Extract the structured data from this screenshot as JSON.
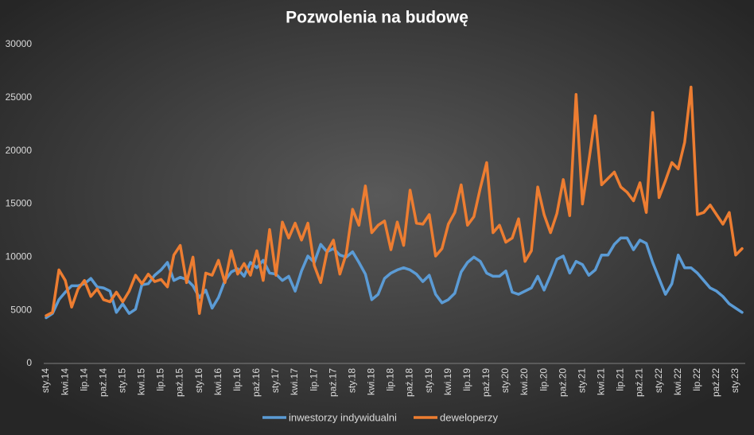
{
  "chart_data": {
    "type": "line",
    "title": "Pozwolenia na budowę",
    "categories": [
      "sty.14",
      null,
      null,
      "kwi.14",
      null,
      null,
      "lip.14",
      null,
      null,
      "paź.14",
      null,
      null,
      "sty.15",
      null,
      null,
      "kwi.15",
      null,
      null,
      "lip.15",
      null,
      null,
      "paź.15",
      null,
      null,
      "sty.16",
      null,
      null,
      "kwi.16",
      null,
      null,
      "lip.16",
      null,
      null,
      "paź.16",
      null,
      null,
      "sty.17",
      null,
      null,
      "kwi.17",
      null,
      null,
      "lip.17",
      null,
      null,
      "paź.17",
      null,
      null,
      "sty.18",
      null,
      null,
      "kwi.18",
      null,
      null,
      "lip.18",
      null,
      null,
      "paź.18",
      null,
      null,
      "sty.19",
      null,
      null,
      "kwi.19",
      null,
      null,
      "lip.19",
      null,
      null,
      "paź.19",
      null,
      null,
      "sty.20",
      null,
      null,
      "kwi.20",
      null,
      null,
      "lip.20",
      null,
      null,
      "paź.20",
      null,
      null,
      "sty.21",
      null,
      null,
      "kwi.21",
      null,
      null,
      "lip.21",
      null,
      null,
      "paź.21",
      null,
      null,
      "sty.22",
      null,
      null,
      "kwi.22",
      null,
      null,
      "lip.22",
      null,
      null,
      "paź.22",
      null,
      null,
      "sty.23",
      null
    ],
    "series": [
      {
        "name": "inwestorzy indywidualni",
        "color": "#5b9bd5",
        "values": [
          4300,
          4700,
          6000,
          6700,
          7300,
          7300,
          7500,
          8000,
          7200,
          7100,
          6800,
          4800,
          5600,
          4700,
          5100,
          7400,
          7500,
          8300,
          8800,
          9500,
          7800,
          8100,
          7900,
          7300,
          6200,
          6900,
          5200,
          6200,
          7800,
          8600,
          8900,
          8200,
          9500,
          9000,
          9700,
          8500,
          8400,
          7800,
          8200,
          6800,
          8700,
          10100,
          9500,
          11200,
          10500,
          10800,
          10200,
          10000,
          10500,
          9500,
          8400,
          6000,
          6500,
          8000,
          8500,
          8800,
          9000,
          8800,
          8400,
          7700,
          8300,
          6500,
          5700,
          6000,
          6600,
          8600,
          9500,
          10000,
          9600,
          8500,
          8200,
          8200,
          8700,
          6700,
          6500,
          6800,
          7100,
          8200,
          6900,
          8300,
          9800,
          10100,
          8500,
          9600,
          9300,
          8300,
          8800,
          10200,
          10200,
          11200,
          11800,
          11800,
          10700,
          11600,
          11300,
          9500,
          8000,
          6500,
          7500,
          10200,
          9000,
          9000,
          8500,
          7800,
          7100,
          6800,
          6300,
          5600,
          5200,
          4800
        ]
      },
      {
        "name": "deweloperzy",
        "color": "#ed7d31",
        "values": [
          4500,
          4800,
          8800,
          7800,
          5300,
          7000,
          7800,
          6300,
          7000,
          6000,
          5800,
          6700,
          5800,
          6800,
          8300,
          7500,
          8400,
          7700,
          7900,
          7200,
          10200,
          11100,
          7600,
          10000,
          4700,
          8500,
          8300,
          9700,
          7600,
          10600,
          8400,
          9400,
          8300,
          10600,
          7800,
          12600,
          8300,
          13300,
          11800,
          13200,
          11600,
          13200,
          9200,
          7600,
          10500,
          11600,
          8400,
          10300,
          14500,
          13000,
          16700,
          12300,
          13000,
          13400,
          10700,
          13300,
          11100,
          16300,
          13200,
          13100,
          14000,
          10100,
          10800,
          13100,
          14200,
          16800,
          13000,
          13800,
          16500,
          18900,
          12300,
          13000,
          11400,
          11800,
          13600,
          9600,
          10600,
          16600,
          14000,
          12300,
          14100,
          17300,
          13900,
          25300,
          15000,
          19000,
          23300,
          16800,
          17400,
          18000,
          16600,
          16100,
          15300,
          17000,
          14200,
          23600,
          15600,
          17200,
          18900,
          18300,
          20800,
          26000,
          14000,
          14200,
          14900,
          14000,
          13100,
          14200,
          10200,
          10800
        ]
      }
    ],
    "ylim": [
      0,
      30000
    ],
    "yticks": [
      0,
      5000,
      10000,
      15000,
      20000,
      25000,
      30000
    ],
    "grid": false,
    "legend": "bottom"
  }
}
